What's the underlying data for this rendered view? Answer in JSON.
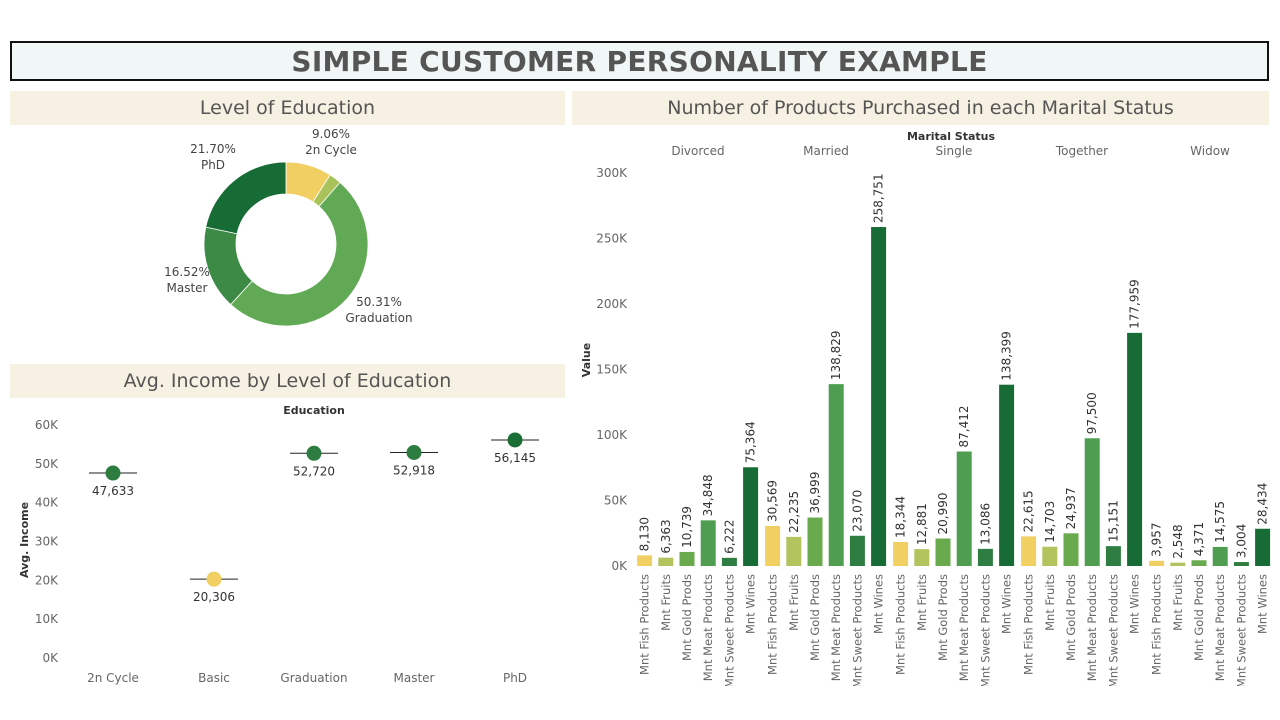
{
  "dashboard": {
    "title": "SIMPLE CUSTOMER PERSONALITY EXAMPLE"
  },
  "colors": {
    "yellow": "#f2cf63",
    "light_green": "#b3c45e",
    "mid_green": "#6aaa4f",
    "green": "#4f9d50",
    "dark_green": "#2f7d40",
    "darkest_green": "#176b35",
    "panel_bg": "#f7f1e3",
    "title_bg": "#f1f7f6"
  },
  "education_donut": {
    "title": "Level of Education",
    "chart_data": {
      "type": "pie",
      "slices": [
        {
          "name": "2n Cycle",
          "pct": 9.06,
          "label": "9.06%",
          "color": "#f2cf63"
        },
        {
          "name": "Basic",
          "pct": 2.41,
          "label": "",
          "color": "#a9c25a"
        },
        {
          "name": "Graduation",
          "pct": 50.31,
          "label": "50.31%",
          "color": "#62a955"
        },
        {
          "name": "Master",
          "pct": 16.52,
          "label": "16.52%",
          "color": "#3d8a47"
        },
        {
          "name": "PhD",
          "pct": 21.7,
          "label": "21.70%",
          "color": "#176b35"
        }
      ]
    }
  },
  "income_chart": {
    "title": "Avg. Income by Level of Education",
    "chart_data": {
      "type": "scatter",
      "header": "Education",
      "ylabel": "Avg. Income",
      "ylim": [
        0,
        60000
      ],
      "yticks": [
        "0K",
        "10K",
        "20K",
        "30K",
        "40K",
        "50K",
        "60K"
      ],
      "categories": [
        "2n Cycle",
        "Basic",
        "Graduation",
        "Master",
        "PhD"
      ],
      "values": [
        47633,
        20306,
        52720,
        52918,
        56145
      ],
      "labels": [
        "47,633",
        "20,306",
        "52,720",
        "52,918",
        "56,145"
      ],
      "colors": [
        "#2e7d40",
        "#f2cf63",
        "#2e7d40",
        "#2e7d40",
        "#1c6e37"
      ]
    }
  },
  "products_chart": {
    "title": "Number of Products Purchased in each Marital Status",
    "chart_data": {
      "type": "bar",
      "header": "Marital Status",
      "ylabel": "Value",
      "ylim": [
        0,
        300000
      ],
      "yticks": [
        "0K",
        "50K",
        "100K",
        "150K",
        "200K",
        "250K",
        "300K"
      ],
      "groups": [
        "Divorced",
        "Married",
        "Single",
        "Together",
        "Widow"
      ],
      "categories": [
        "Mnt Fish Products",
        "Mnt Fruits",
        "Mnt Gold Prods",
        "Mnt Meat Products",
        "Mnt Sweet Products",
        "Mnt Wines"
      ],
      "category_colors": [
        "#f2cf63",
        "#b3c45e",
        "#6aaa4f",
        "#4f9d50",
        "#2f7d40",
        "#176b35"
      ],
      "series": [
        {
          "group": "Divorced",
          "values": [
            8130,
            6363,
            10739,
            34848,
            6222,
            75364
          ],
          "labels": [
            "8,130",
            "6,363",
            "10,739",
            "34,848",
            "6,222",
            "75,364"
          ]
        },
        {
          "group": "Married",
          "values": [
            30569,
            22235,
            36999,
            138829,
            23070,
            258751
          ],
          "labels": [
            "30,569",
            "22,235",
            "36,999",
            "138,829",
            "23,070",
            "258,751"
          ]
        },
        {
          "group": "Single",
          "values": [
            18344,
            12881,
            20990,
            87412,
            13086,
            138399
          ],
          "labels": [
            "18,344",
            "12,881",
            "20,990",
            "87,412",
            "13,086",
            "138,399"
          ]
        },
        {
          "group": "Together",
          "values": [
            22615,
            14703,
            24937,
            97500,
            15151,
            177959
          ],
          "labels": [
            "22,615",
            "14,703",
            "24,937",
            "97,500",
            "15,151",
            "177,959"
          ]
        },
        {
          "group": "Widow",
          "values": [
            3957,
            2548,
            4371,
            14575,
            3004,
            28434
          ],
          "labels": [
            "3,957",
            "2,548",
            "4,371",
            "14,575",
            "3,004",
            "28,434"
          ]
        }
      ]
    }
  }
}
